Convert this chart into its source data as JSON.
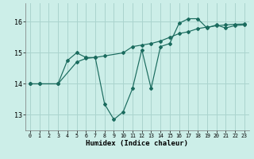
{
  "xlabel": "Humidex (Indice chaleur)",
  "bg_color": "#cceee8",
  "grid_color": "#aad4ce",
  "line_color": "#1a6b5e",
  "xlim": [
    -0.5,
    23.5
  ],
  "ylim": [
    12.5,
    16.6
  ],
  "yticks": [
    13,
    14,
    15,
    16
  ],
  "xticks": [
    0,
    1,
    2,
    3,
    4,
    5,
    6,
    7,
    8,
    9,
    10,
    11,
    12,
    13,
    14,
    15,
    16,
    17,
    18,
    19,
    20,
    21,
    22,
    23
  ],
  "line1_x": [
    0,
    1,
    3,
    4,
    5,
    6,
    7,
    8,
    9,
    10,
    11,
    12,
    13,
    14,
    15,
    16,
    17,
    18,
    19,
    20,
    21,
    22,
    23
  ],
  "line1_y": [
    14.0,
    14.0,
    14.0,
    14.75,
    15.0,
    14.85,
    14.85,
    13.35,
    12.85,
    13.1,
    13.85,
    15.1,
    13.85,
    15.2,
    15.3,
    15.95,
    16.1,
    16.1,
    15.8,
    15.9,
    15.8,
    15.88,
    15.9
  ],
  "line2_x": [
    0,
    1,
    3,
    5,
    6,
    7,
    8,
    10,
    11,
    12,
    13,
    14,
    15,
    16,
    17,
    18,
    19,
    20,
    21,
    22,
    23
  ],
  "line2_y": [
    14.0,
    14.0,
    14.0,
    14.7,
    14.82,
    14.85,
    14.9,
    15.0,
    15.2,
    15.25,
    15.3,
    15.38,
    15.5,
    15.62,
    15.68,
    15.78,
    15.83,
    15.87,
    15.9,
    15.92,
    15.93
  ]
}
